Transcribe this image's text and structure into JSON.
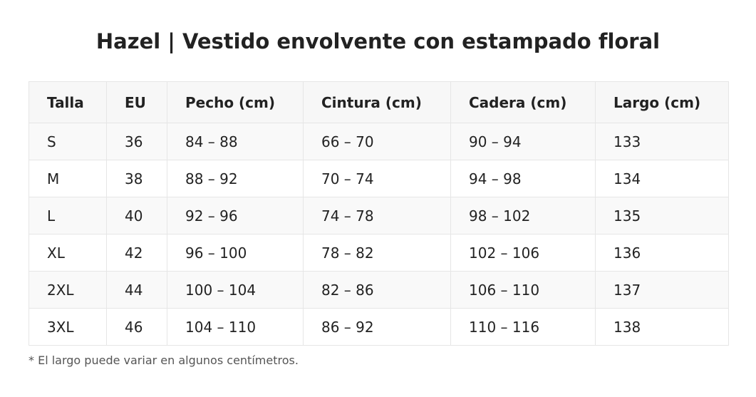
{
  "header": {
    "title": "Hazel | Vestido envolvente con estampado floral"
  },
  "table": {
    "headers": [
      "Talla",
      "EU",
      "Pecho (cm)",
      "Cintura (cm)",
      "Cadera (cm)",
      "Largo (cm)"
    ],
    "rows": [
      [
        "S",
        "36",
        "84 – 88",
        "66 – 70",
        "90 – 94",
        "133"
      ],
      [
        "M",
        "38",
        "88 – 92",
        "70 – 74",
        "94 – 98",
        "134"
      ],
      [
        "L",
        "40",
        "92 – 96",
        "74 – 78",
        "98 – 102",
        "135"
      ],
      [
        "XL",
        "42",
        "96 – 100",
        "78 – 82",
        "102 – 106",
        "136"
      ],
      [
        "2XL",
        "44",
        "100 – 104",
        "82 – 86",
        "106 – 110",
        "137"
      ],
      [
        "3XL",
        "46",
        "104 – 110",
        "86 – 92",
        "110 – 116",
        "138"
      ]
    ]
  },
  "footnote": "* El largo puede variar en algunos centímetros."
}
